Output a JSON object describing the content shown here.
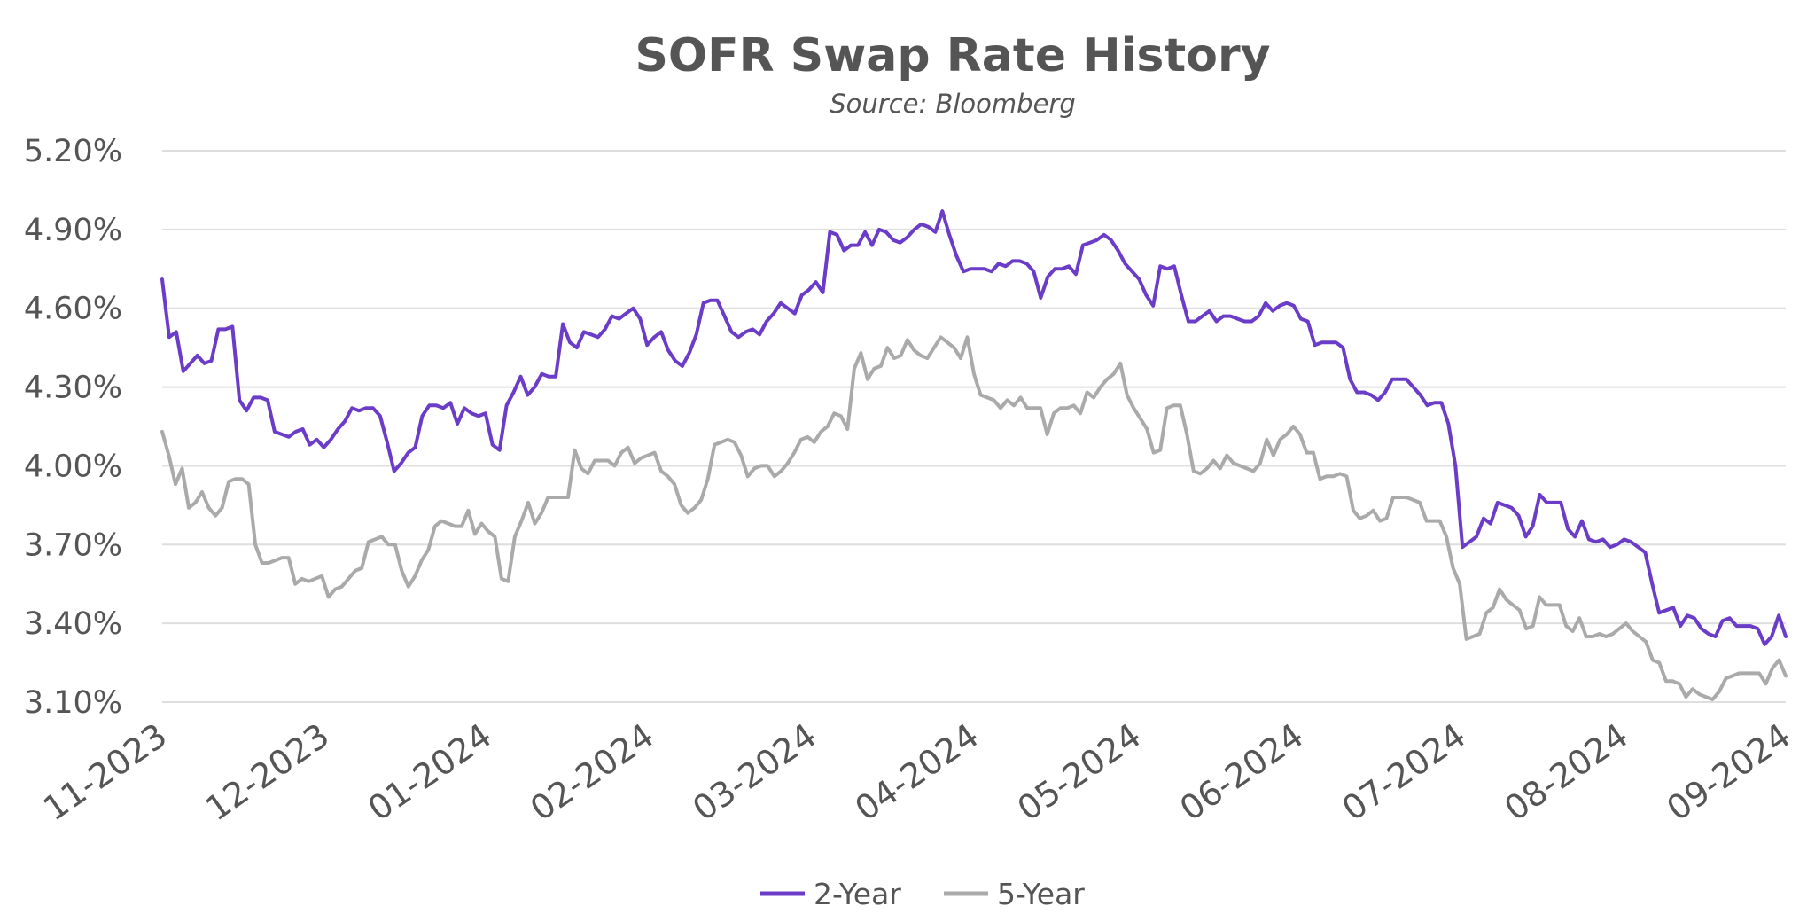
{
  "chart_data": {
    "type": "line",
    "title": "SOFR Swap Rate History",
    "subtitle": "Source: Bloomberg",
    "xlabel": "",
    "ylabel": "",
    "ylim": [
      3.1,
      5.2
    ],
    "yticks": [
      "5.20%",
      "4.90%",
      "4.60%",
      "4.30%",
      "4.00%",
      "3.70%",
      "3.40%",
      "3.10%"
    ],
    "yticks_values": [
      5.2,
      4.9,
      4.6,
      4.3,
      4.0,
      3.7,
      3.4,
      3.1
    ],
    "xticks": [
      "11-2023",
      "12-2023",
      "01-2024",
      "02-2024",
      "03-2024",
      "04-2024",
      "05-2024",
      "06-2024",
      "07-2024",
      "08-2024",
      "09-2024"
    ],
    "grid": true,
    "legend_position": "bottom-center",
    "series": [
      {
        "name": "2-Year",
        "color": "#6a3cc8",
        "values": [
          4.71,
          4.49,
          4.51,
          4.36,
          4.39,
          4.42,
          4.39,
          4.4,
          4.52,
          4.52,
          4.53,
          4.25,
          4.21,
          4.26,
          4.26,
          4.25,
          4.13,
          4.12,
          4.11,
          4.13,
          4.14,
          4.08,
          4.1,
          4.07,
          4.1,
          4.14,
          4.17,
          4.22,
          4.21,
          4.22,
          4.22,
          4.19,
          4.09,
          3.98,
          4.01,
          4.05,
          4.07,
          4.19,
          4.23,
          4.23,
          4.22,
          4.24,
          4.16,
          4.22,
          4.2,
          4.19,
          4.2,
          4.08,
          4.06,
          4.23,
          4.28,
          4.34,
          4.27,
          4.3,
          4.35,
          4.34,
          4.34,
          4.54,
          4.47,
          4.45,
          4.51,
          4.5,
          4.49,
          4.52,
          4.57,
          4.56,
          4.58,
          4.6,
          4.56,
          4.46,
          4.49,
          4.51,
          4.44,
          4.4,
          4.38,
          4.43,
          4.5,
          4.62,
          4.63,
          4.63,
          4.57,
          4.51,
          4.49,
          4.51,
          4.52,
          4.5,
          4.55,
          4.58,
          4.62,
          4.6,
          4.58,
          4.65,
          4.67,
          4.7,
          4.66,
          4.89,
          4.88,
          4.82,
          4.84,
          4.84,
          4.89,
          4.84,
          4.9,
          4.89,
          4.86,
          4.85,
          4.87,
          4.9,
          4.92,
          4.91,
          4.89,
          4.97,
          4.88,
          4.8,
          4.74,
          4.75,
          4.75,
          4.75,
          4.74,
          4.77,
          4.76,
          4.78,
          4.78,
          4.77,
          4.74,
          4.64,
          4.72,
          4.75,
          4.75,
          4.76,
          4.73,
          4.84,
          4.85,
          4.86,
          4.88,
          4.86,
          4.82,
          4.77,
          4.74,
          4.71,
          4.65,
          4.61,
          4.76,
          4.75,
          4.76,
          4.65,
          4.55,
          4.55,
          4.57,
          4.59,
          4.55,
          4.57,
          4.57,
          4.56,
          4.55,
          4.55,
          4.57,
          4.62,
          4.59,
          4.61,
          4.62,
          4.61,
          4.56,
          4.55,
          4.46,
          4.47,
          4.47,
          4.47,
          4.45,
          4.33,
          4.28,
          4.28,
          4.27,
          4.25,
          4.28,
          4.33,
          4.33,
          4.33,
          4.3,
          4.27,
          4.23,
          4.24,
          4.24,
          4.16,
          4.0,
          3.69,
          3.71,
          3.73,
          3.8,
          3.78,
          3.86,
          3.85,
          3.84,
          3.81,
          3.73,
          3.77,
          3.89,
          3.86,
          3.86,
          3.86,
          3.76,
          3.73,
          3.79,
          3.72,
          3.71,
          3.72,
          3.69,
          3.7,
          3.72,
          3.71,
          3.69,
          3.67,
          3.55,
          3.44,
          3.45,
          3.46,
          3.39,
          3.43,
          3.42,
          3.38,
          3.36,
          3.35,
          3.41,
          3.42,
          3.39,
          3.39,
          3.39,
          3.38,
          3.32,
          3.35,
          3.43,
          3.35
        ]
      },
      {
        "name": "5-Year",
        "color": "#aaaaaa",
        "values": [
          4.13,
          4.04,
          3.93,
          3.99,
          3.84,
          3.86,
          3.9,
          3.84,
          3.81,
          3.84,
          3.94,
          3.95,
          3.95,
          3.93,
          3.7,
          3.63,
          3.63,
          3.64,
          3.65,
          3.65,
          3.55,
          3.57,
          3.56,
          3.57,
          3.58,
          3.5,
          3.53,
          3.54,
          3.57,
          3.6,
          3.61,
          3.71,
          3.72,
          3.73,
          3.7,
          3.7,
          3.6,
          3.54,
          3.58,
          3.64,
          3.68,
          3.77,
          3.79,
          3.78,
          3.77,
          3.77,
          3.83,
          3.74,
          3.78,
          3.75,
          3.73,
          3.57,
          3.56,
          3.73,
          3.79,
          3.86,
          3.78,
          3.82,
          3.88,
          3.88,
          3.88,
          3.88,
          4.06,
          3.99,
          3.97,
          4.02,
          4.02,
          4.02,
          4.0,
          4.05,
          4.07,
          4.01,
          4.03,
          4.04,
          4.05,
          3.98,
          3.96,
          3.93,
          3.85,
          3.82,
          3.84,
          3.87,
          3.95,
          4.08,
          4.09,
          4.1,
          4.09,
          4.04,
          3.96,
          3.99,
          4.0,
          4.0,
          3.96,
          3.98,
          4.01,
          4.05,
          4.1,
          4.11,
          4.09,
          4.13,
          4.15,
          4.2,
          4.19,
          4.14,
          4.37,
          4.43,
          4.33,
          4.37,
          4.38,
          4.45,
          4.41,
          4.42,
          4.48,
          4.44,
          4.42,
          4.41,
          4.45,
          4.49,
          4.47,
          4.45,
          4.41,
          4.49,
          4.35,
          4.27,
          4.26,
          4.25,
          4.22,
          4.25,
          4.23,
          4.26,
          4.22,
          4.22,
          4.22,
          4.12,
          4.2,
          4.22,
          4.22,
          4.23,
          4.2,
          4.28,
          4.26,
          4.3,
          4.33,
          4.35,
          4.39,
          4.27,
          4.22,
          4.18,
          4.14,
          4.05,
          4.06,
          4.22,
          4.23,
          4.23,
          4.12,
          3.98,
          3.97,
          3.99,
          4.02,
          3.99,
          4.04,
          4.01,
          4.0,
          3.99,
          3.98,
          4.01,
          4.1,
          4.04,
          4.1,
          4.12,
          4.15,
          4.12,
          4.05,
          4.05,
          3.95,
          3.96,
          3.96,
          3.97,
          3.96,
          3.83,
          3.8,
          3.81,
          3.83,
          3.79,
          3.8,
          3.88,
          3.88,
          3.88,
          3.87,
          3.86,
          3.79,
          3.79,
          3.79,
          3.73,
          3.61,
          3.55,
          3.34,
          3.35,
          3.36,
          3.44,
          3.46,
          3.53,
          3.49,
          3.47,
          3.45,
          3.38,
          3.39,
          3.5,
          3.47,
          3.47,
          3.47,
          3.39,
          3.37,
          3.42,
          3.35,
          3.35,
          3.36,
          3.35,
          3.36,
          3.38,
          3.4,
          3.37,
          3.35,
          3.33,
          3.26,
          3.25,
          3.18,
          3.18,
          3.17,
          3.12,
          3.15,
          3.13,
          3.12,
          3.11,
          3.14,
          3.19,
          3.2,
          3.21,
          3.21,
          3.21,
          3.21,
          3.17,
          3.23,
          3.26,
          3.2
        ]
      }
    ]
  }
}
